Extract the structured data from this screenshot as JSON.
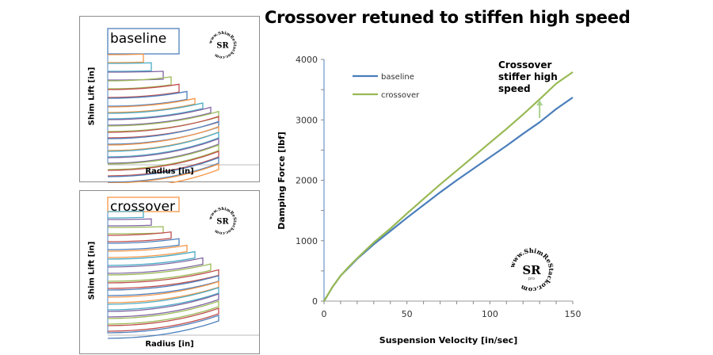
{
  "title": "Crossover retuned to stiffen high speed",
  "panels": [
    {
      "id": "baseline",
      "tag": "baseline",
      "tag_border_color": "#4f81bd",
      "ylabel": "Shim Lift [in]",
      "xlabel": "Radius [in]",
      "logo": "ShimReStackor SR"
    },
    {
      "id": "crossover",
      "tag": "crossover",
      "tag_border_color": "#f79646",
      "ylabel": "Shim Lift [in]",
      "xlabel": "Radius [in]",
      "logo": "ShimReStackor SR"
    }
  ],
  "chart_data": {
    "type": "line",
    "title": "Crossover retuned to stiffen high speed",
    "xlabel": "Suspension Velocity [in/sec]",
    "ylabel": "Damping Force [lbf]",
    "xlim": [
      0,
      150
    ],
    "ylim": [
      0,
      4000
    ],
    "xticks": [
      0,
      50,
      100,
      150
    ],
    "yticks": [
      0,
      1000,
      2000,
      3000,
      4000
    ],
    "x_minor_step": 10,
    "y_minor_step": 500,
    "grid": false,
    "legend_position": "upper-left",
    "x": [
      0,
      2,
      5,
      10,
      15,
      20,
      25,
      30,
      40,
      50,
      60,
      70,
      80,
      90,
      100,
      110,
      120,
      130,
      140,
      150
    ],
    "series": [
      {
        "name": "baseline",
        "color": "#4a7ebb",
        "values": [
          0,
          90,
          230,
          420,
          560,
          700,
          820,
          940,
          1160,
          1380,
          1590,
          1800,
          2000,
          2190,
          2380,
          2570,
          2770,
          2960,
          3180,
          3370
        ]
      },
      {
        "name": "crossover",
        "color": "#98b954",
        "values": [
          0,
          90,
          230,
          420,
          570,
          710,
          840,
          970,
          1200,
          1450,
          1690,
          1930,
          2160,
          2390,
          2620,
          2850,
          3090,
          3340,
          3600,
          3790
        ]
      }
    ],
    "annotations": [
      {
        "text_lines": [
          "Crossover",
          "stiffer high",
          "speed"
        ],
        "arrow": {
          "x": 130,
          "from_y": 3030,
          "to_y": 3330,
          "color": "#a9d18e"
        }
      }
    ],
    "watermark": {
      "ring_text": "www.ShimReStackor.com",
      "center": "SR",
      "sub": "pro"
    }
  }
}
